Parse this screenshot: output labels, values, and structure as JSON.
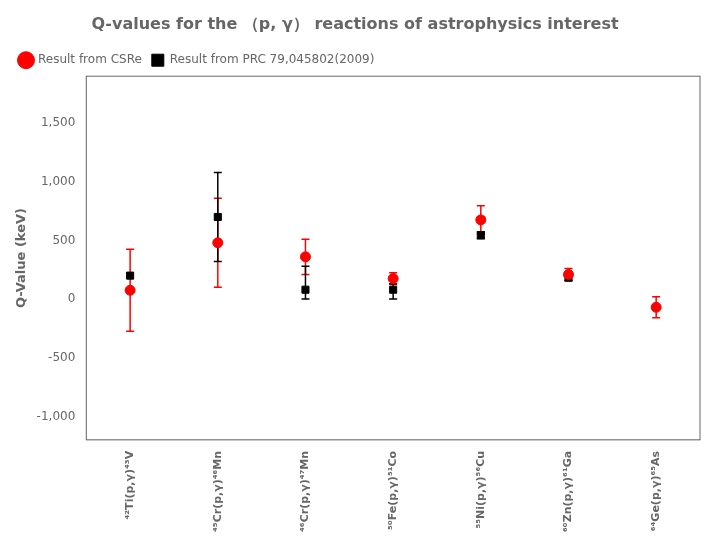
{
  "chart_data": {
    "type": "scatter",
    "title": "Q-values for the （p, γ） reactions of astrophysics interest",
    "ylabel": "Q-Value (keV)",
    "categories": [
      "⁴²Ti(p,γ)⁴³V",
      "⁴⁵Cr(p,γ)⁴⁶Mn",
      "⁴⁶Cr(p,γ)⁴⁷Mn",
      "⁵⁰Fe(p,γ)⁵¹Co",
      "⁵⁵Ni(p,γ)⁵⁶Cu",
      "⁶⁰Zn(p,γ)⁶¹Ga",
      "⁶⁴Ge(p,γ)⁶⁵As"
    ],
    "series": [
      {
        "name": "Result from CSRe",
        "color": "#ff0000",
        "marker": "circle",
        "values": [
          75,
          480,
          360,
          175,
          675,
          210,
          -70
        ],
        "err_up": [
          350,
          380,
          150,
          50,
          120,
          50,
          90
        ],
        "err_dn": [
          350,
          380,
          150,
          50,
          120,
          50,
          90
        ]
      },
      {
        "name": "Result from PRC 79,045802(2009)",
        "color": "#000000",
        "marker": "square",
        "values": [
          200,
          700,
          80,
          80,
          545,
          185,
          null
        ],
        "err_up": [
          null,
          380,
          200,
          50,
          30,
          30,
          null
        ],
        "err_dn": [
          null,
          380,
          80,
          80,
          30,
          30,
          null
        ]
      }
    ],
    "ylim": [
      -1200,
      1900
    ],
    "yticks": [
      -1000,
      -500,
      0,
      500,
      1000,
      1500
    ],
    "grid": false,
    "legend": "upper left"
  }
}
